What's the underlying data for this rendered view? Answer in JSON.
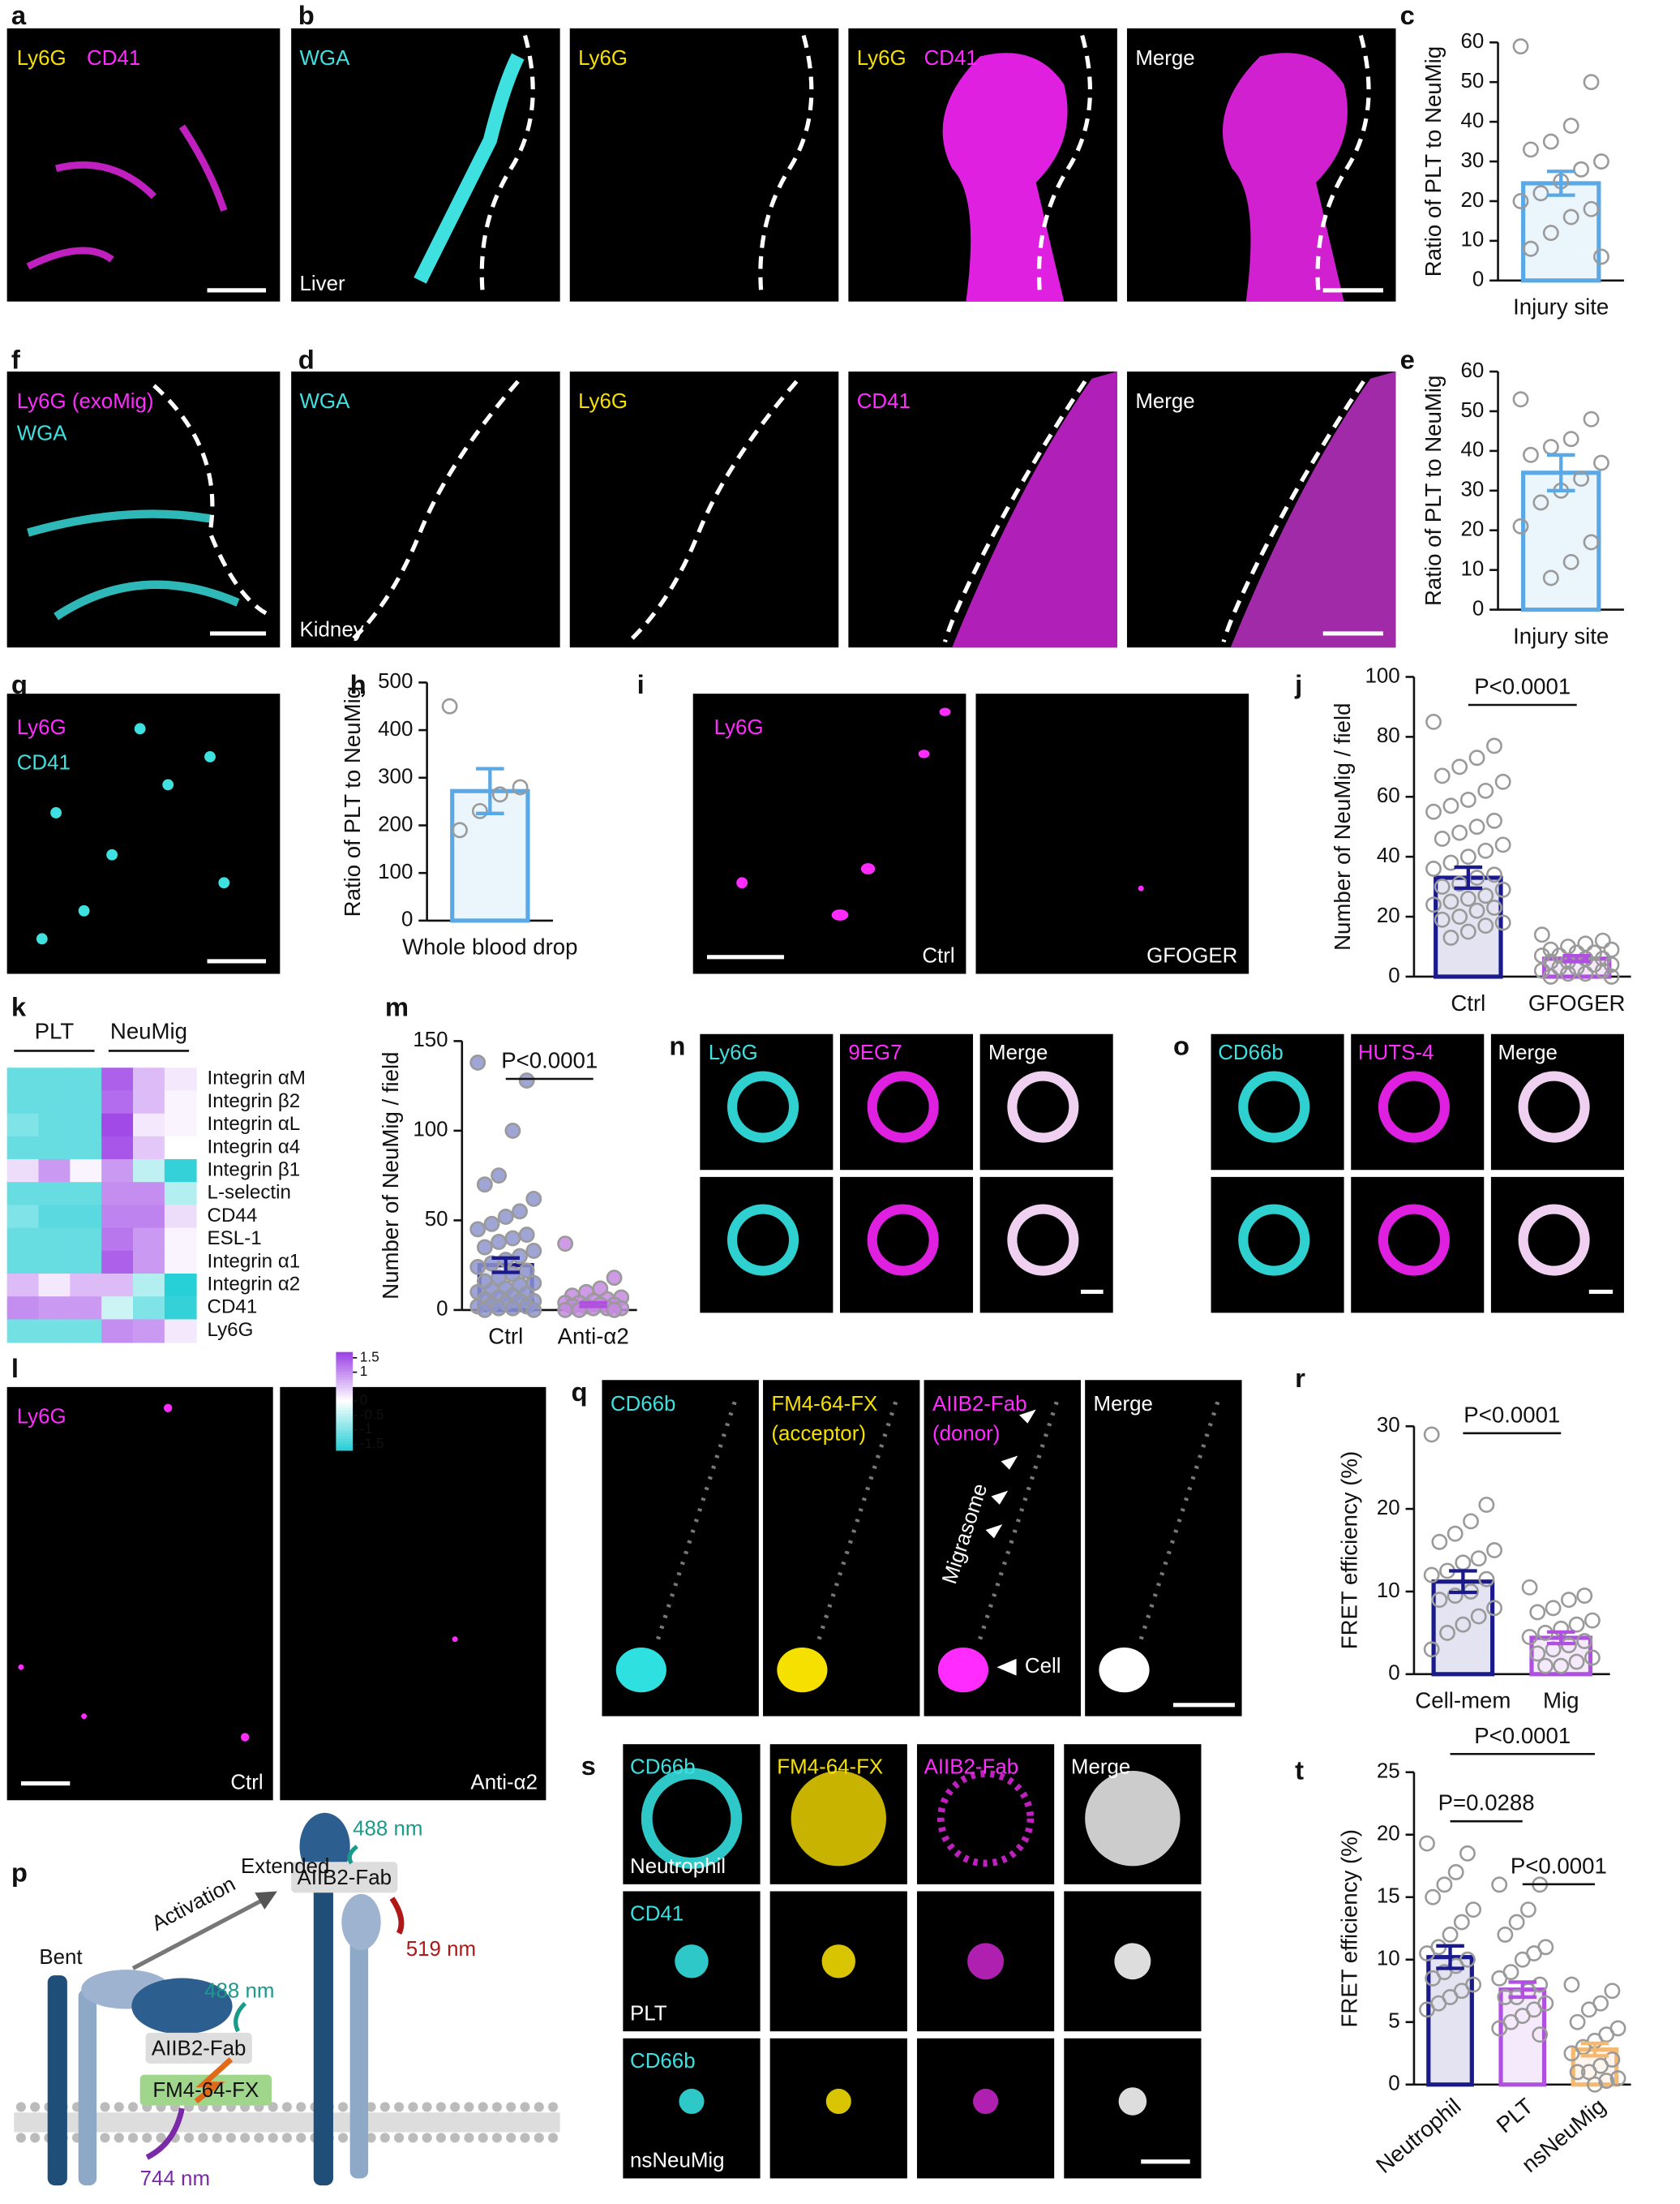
{
  "panel_labels": [
    "a",
    "b",
    "c",
    "f",
    "d",
    "e",
    "g",
    "h",
    "i",
    "j",
    "k",
    "m",
    "n",
    "o",
    "l",
    "q",
    "r",
    "p",
    "s",
    "t"
  ],
  "micrographs": {
    "a": [
      "Ly6G",
      "CD41"
    ],
    "b": [
      "WGA",
      "Liver",
      "Ly6G",
      "Ly6G",
      "CD41",
      "Merge"
    ],
    "f": [
      "Ly6G (exoMig)",
      "WGA"
    ],
    "d": [
      "WGA",
      "Kidney",
      "Ly6G",
      "CD41",
      "Merge"
    ],
    "g": [
      "Ly6G",
      "CD41"
    ],
    "i": [
      "Ly6G",
      "Ctrl",
      "GFOGER"
    ],
    "l": [
      "Ly6G",
      "Ctrl",
      "Anti-α2"
    ],
    "n": [
      "Ly6G",
      "9EG7",
      "Merge"
    ],
    "o": [
      "CD66b",
      "HUTS-4",
      "Merge"
    ],
    "q": [
      "CD66b",
      "FM4-64-FX",
      "(acceptor)",
      "AIIB2-Fab",
      "(donor)",
      "Migrasome",
      "Cell",
      "Merge"
    ],
    "s": [
      "CD66b",
      "FM4-64-FX",
      "AIIB2-Fab",
      "Merge",
      "Neutrophil",
      "CD41",
      "PLT",
      "CD66b",
      "nsNeuMig"
    ]
  },
  "diagram_p": [
    "Bent",
    "Activation",
    "Extended",
    "488 nm",
    "AIIB2-Fab",
    "519 nm",
    "488 nm",
    "AIIB2-Fab",
    "FM4-64-FX",
    "744 nm"
  ],
  "chart_data": [
    {
      "type": "bar",
      "ylabel": "Ratio of PLT to NeuMig",
      "categories": [
        "Injury site"
      ],
      "values": [
        24.5
      ],
      "errors": [
        3
      ],
      "points": [
        [
          59,
          50,
          39,
          35,
          33,
          30,
          28,
          25,
          22,
          20,
          18,
          16,
          12,
          8,
          6
        ]
      ],
      "colors": [
        "#5aa9e6"
      ],
      "ylim": [
        0,
        60
      ],
      "yticks": [
        0,
        10,
        20,
        30,
        40,
        50,
        60
      ],
      "comparisons": []
    },
    {
      "type": "bar",
      "ylabel": "Ratio of PLT to NeuMig",
      "categories": [
        "Injury site"
      ],
      "values": [
        34.5
      ],
      "errors": [
        4.5
      ],
      "points": [
        [
          53,
          48,
          43,
          41,
          39,
          37,
          33,
          30,
          27,
          21,
          17,
          12,
          8
        ]
      ],
      "colors": [
        "#5aa9e6"
      ],
      "ylim": [
        0,
        60
      ],
      "yticks": [
        0,
        10,
        20,
        30,
        40,
        50,
        60
      ],
      "comparisons": []
    },
    {
      "type": "bar",
      "ylabel": "Ratio of PLT to NeuMig",
      "categories": [
        "Whole blood drop"
      ],
      "values": [
        272
      ],
      "errors": [
        47
      ],
      "points": [
        [
          450,
          280,
          265,
          230,
          190
        ]
      ],
      "colors": [
        "#5aa9e6"
      ],
      "ylim": [
        0,
        500
      ],
      "yticks": [
        0,
        100,
        200,
        300,
        400,
        500
      ],
      "comparisons": []
    },
    {
      "type": "bar",
      "ylabel": "Number of NeuMig / field",
      "categories": [
        "Ctrl",
        "GFOGER"
      ],
      "values": [
        33,
        6
      ],
      "errors": [
        3.5,
        1
      ],
      "points": [
        [
          85,
          77,
          73,
          70,
          67,
          65,
          62,
          59,
          57,
          55,
          52,
          50,
          48,
          46,
          44,
          42,
          40,
          38,
          36,
          34,
          33,
          31,
          30,
          29,
          27,
          26,
          25,
          24,
          23,
          22,
          20,
          19,
          18,
          17,
          15,
          13
        ],
        [
          14,
          12,
          11,
          10,
          9,
          9,
          8,
          8,
          7,
          7,
          6,
          6,
          5,
          5,
          4,
          4,
          3,
          3,
          2,
          2,
          1,
          1,
          0,
          0
        ]
      ],
      "colors": [
        "#1a1a8c",
        "#b050e0"
      ],
      "ylim": [
        0,
        100
      ],
      "yticks": [
        0,
        20,
        40,
        60,
        80,
        100
      ],
      "comparisons": [
        {
          "label": "P<0.0001",
          "pair": [
            "Ctrl",
            "GFOGER"
          ]
        }
      ]
    },
    {
      "type": "bar",
      "ylabel": "Number of NeuMig / field",
      "categories": [
        "Ctrl",
        "Anti-α2"
      ],
      "values": [
        25,
        3
      ],
      "errors": [
        4,
        1
      ],
      "points": [
        [
          138,
          128,
          100,
          75,
          70,
          62,
          55,
          52,
          48,
          45,
          42,
          40,
          38,
          35,
          33,
          30,
          28,
          26,
          24,
          22,
          20,
          18,
          16,
          15,
          14,
          12,
          11,
          10,
          9,
          8,
          7,
          6,
          5,
          5,
          4,
          3,
          2,
          2,
          1,
          1,
          0,
          0
        ],
        [
          37,
          18,
          12,
          10,
          8,
          7,
          6,
          5,
          4,
          4,
          3,
          3,
          2,
          2,
          1,
          1,
          1,
          0,
          0,
          0
        ]
      ],
      "colors": [
        "#1a1a8c",
        "#b050e0"
      ],
      "point_fill": [
        "#8e95cc",
        "#c58be0"
      ],
      "ylim": [
        0,
        150
      ],
      "yticks": [
        0,
        50,
        100,
        150
      ],
      "comparisons": [
        {
          "label": "P<0.0001",
          "pair": [
            "Ctrl",
            "Anti-α2"
          ]
        }
      ]
    },
    {
      "type": "bar",
      "ylabel": "FRET efficiency (%)",
      "categories": [
        "Cell-mem",
        "Mig"
      ],
      "values": [
        11.2,
        4.4
      ],
      "errors": [
        1.3,
        0.7
      ],
      "points": [
        [
          29,
          20.5,
          18.5,
          17,
          16,
          15,
          14,
          13.5,
          12.5,
          12,
          11.5,
          10,
          9.5,
          9,
          8,
          7,
          6,
          5,
          3
        ],
        [
          10.5,
          9.5,
          9,
          8,
          7.5,
          6.5,
          6,
          5.5,
          5,
          4.5,
          4,
          3.5,
          3,
          2.5,
          2,
          1.5,
          1,
          1
        ]
      ],
      "colors": [
        "#1a1a8c",
        "#b050e0"
      ],
      "ylim": [
        0,
        30
      ],
      "yticks": [
        0,
        10,
        20,
        30
      ],
      "comparisons": [
        {
          "label": "P<0.0001",
          "pair": [
            "Cell-mem",
            "Mig"
          ]
        }
      ]
    },
    {
      "type": "bar",
      "ylabel": "FRET efficiency (%)",
      "categories": [
        "Neutrophil",
        "PLT",
        "nsNeuMig"
      ],
      "values": [
        10.2,
        7.6,
        2.8
      ],
      "errors": [
        0.9,
        0.6,
        0.5
      ],
      "points": [
        [
          19.3,
          18.5,
          17,
          16,
          15,
          14,
          13,
          12,
          11,
          10.5,
          10,
          9.5,
          9,
          8.5,
          8,
          7.5,
          7,
          6.5,
          6
        ],
        [
          16,
          16,
          14,
          13,
          12,
          11,
          10.5,
          10,
          9,
          8.5,
          8,
          7.5,
          7,
          7,
          6.5,
          6,
          5.5,
          5,
          4.5,
          4
        ],
        [
          8,
          7.5,
          6.5,
          6,
          5,
          4.5,
          4,
          3.5,
          3,
          2.5,
          2,
          1.5,
          1,
          1,
          0.5,
          0.3,
          0
        ]
      ],
      "colors": [
        "#1a1a8c",
        "#b050e0",
        "#f5b870"
      ],
      "ylim": [
        0,
        25
      ],
      "yticks": [
        0,
        5,
        10,
        15,
        20,
        25
      ],
      "comparisons": [
        {
          "label": "P<0.0001",
          "pair": [
            "Neutrophil",
            "nsNeuMig"
          ]
        },
        {
          "label": "P=0.0288",
          "pair": [
            "Neutrophil",
            "PLT"
          ]
        },
        {
          "label": "P<0.0001",
          "pair": [
            "PLT",
            "nsNeuMig"
          ]
        }
      ]
    },
    {
      "type": "heatmap",
      "column_groups": [
        "PLT",
        "NeuMig"
      ],
      "rows": [
        "Integrin αM",
        "Integrin β2",
        "Integrin αL",
        "Integrin α4",
        "Integrin β1",
        "L-selectin",
        "CD44",
        "ESL-1",
        "Integrin α1",
        "Integrin α2",
        "CD41",
        "Ly6G"
      ],
      "values": [
        [
          -1.2,
          -1.2,
          -1.2,
          1.4,
          0.6,
          0.2
        ],
        [
          -1.2,
          -1.2,
          -1.2,
          1.3,
          0.6,
          0.1
        ],
        [
          -1,
          -1.2,
          -1.2,
          1.6,
          0.2,
          0.1
        ],
        [
          -1.2,
          -1.2,
          -1.2,
          1.5,
          0.5,
          0
        ],
        [
          0.3,
          0.9,
          0.1,
          0.9,
          -0.5,
          -1.6
        ],
        [
          -1.2,
          -1.2,
          -1.2,
          1,
          1,
          -0.6
        ],
        [
          -1,
          -1.3,
          -1.3,
          1.1,
          1.1,
          0.3
        ],
        [
          -1.2,
          -1.2,
          -1.2,
          1.2,
          0.9,
          0.1
        ],
        [
          -1.2,
          -1.2,
          -1.2,
          1.4,
          0.9,
          0.1
        ],
        [
          0.6,
          0.2,
          0.6,
          0.6,
          -0.6,
          -1.7
        ],
        [
          1,
          0.9,
          0.9,
          -0.4,
          -1,
          -1.6
        ],
        [
          -1.1,
          -1.1,
          -1.1,
          1,
          0.9,
          0.2
        ]
      ],
      "colors": [
        "#27cfd6",
        "#ffffff",
        "#9b3fe6"
      ],
      "clim": [
        -1.7,
        1.7
      ],
      "cticks": [
        1.5,
        1,
        0,
        -0.5,
        -1,
        -1.5
      ]
    }
  ]
}
